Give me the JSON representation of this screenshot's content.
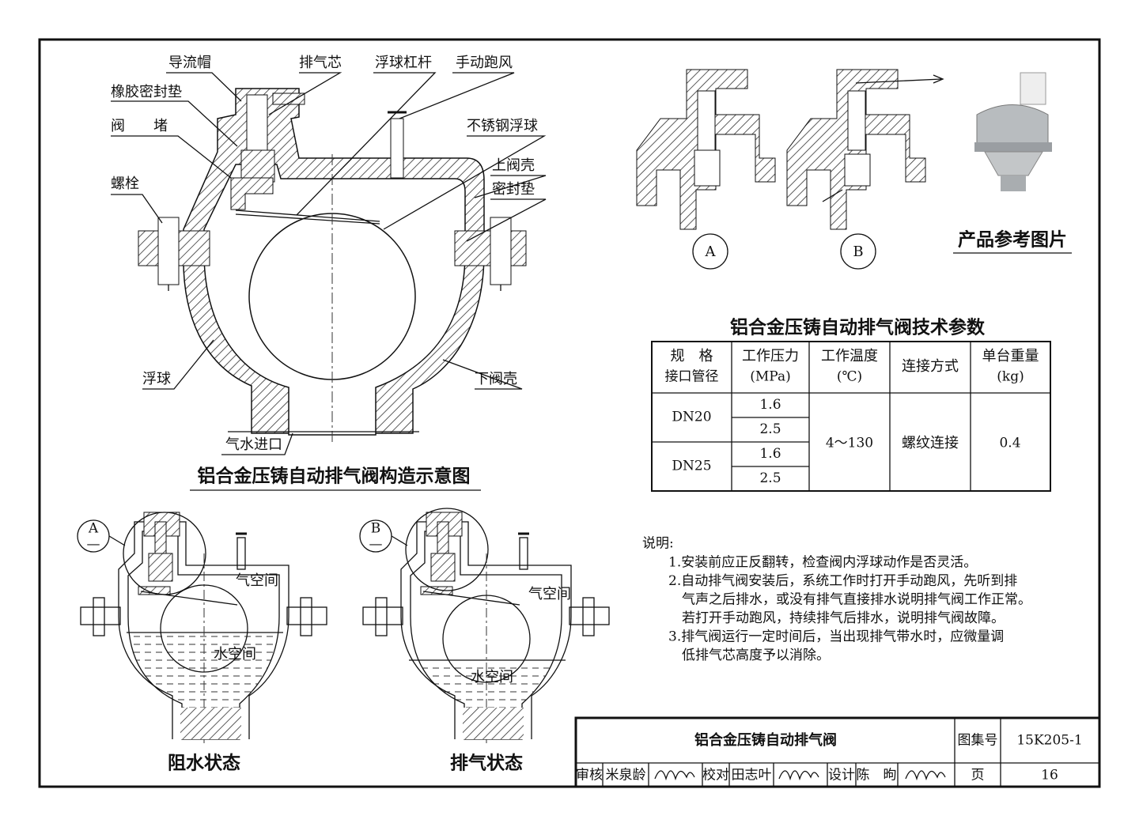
{
  "main_drawing": {
    "title": "铝合金压铸自动排气阀构造示意图",
    "labels": {
      "cap": "导流帽",
      "core": "排气芯",
      "lever": "浮球杠杆",
      "manual": "手动跑风",
      "gasket": "橡胶密封垫",
      "plug": "阀　　堵",
      "steel_ball": "不锈钢浮球",
      "upper_shell": "上阀壳",
      "bolt": "螺栓",
      "seal": "密封垫",
      "float": "浮球",
      "lower_shell": "下阀壳",
      "inlet": "气水进口"
    }
  },
  "details": {
    "a": "A",
    "b": "B"
  },
  "photo_caption": "产品参考图片",
  "table": {
    "title": "铝合金压铸自动排气阀技术参数",
    "headers": [
      [
        "规　格",
        "接口管径"
      ],
      [
        "工作压力",
        "(MPa)"
      ],
      [
        "工作温度",
        "(℃)"
      ],
      [
        "连接方式"
      ],
      [
        "单台重量",
        "(kg)"
      ]
    ],
    "rows": [
      [
        "DN20",
        "1.6"
      ],
      [
        "2.5"
      ],
      [
        "DN25",
        "1.6"
      ],
      [
        "2.5"
      ]
    ],
    "temperature": "4～130",
    "connection": "螺纹连接",
    "weight": "0.4"
  },
  "notes": {
    "title": "说明:",
    "lines": [
      "1.安装前应正反翻转，检查阀内浮球动作是否灵活。",
      "2.自动排气阀安装后，系统工作时打开手动跑风，先听到排",
      "气声之后排水，或没有排气直接排水说明排气阀工作正常。",
      "若打开手动跑风，持续排气后排水，说明排气阀故障。",
      "3.排气阀运行一定时间后，当出现排气带水时，应微量调",
      "低排气芯高度予以消除。"
    ]
  },
  "states": [
    {
      "marker": "A",
      "marker_sub": "—",
      "air": "气空间",
      "water": "水空间",
      "caption": "阻水状态"
    },
    {
      "marker": "B",
      "marker_sub": "—",
      "air": "气空间",
      "water": "水空间",
      "caption": "排气状态"
    }
  ],
  "title_block": {
    "title": "铝合金压铸自动排气阀",
    "atlas_label": "图集号",
    "atlas_no": "15K205-1",
    "review_label": "审核",
    "reviewer": "米泉龄",
    "check_label": "校对",
    "checker": "田志叶",
    "design_label": "设计",
    "designer": "陈　昫",
    "page_label": "页",
    "page_no": "16"
  }
}
